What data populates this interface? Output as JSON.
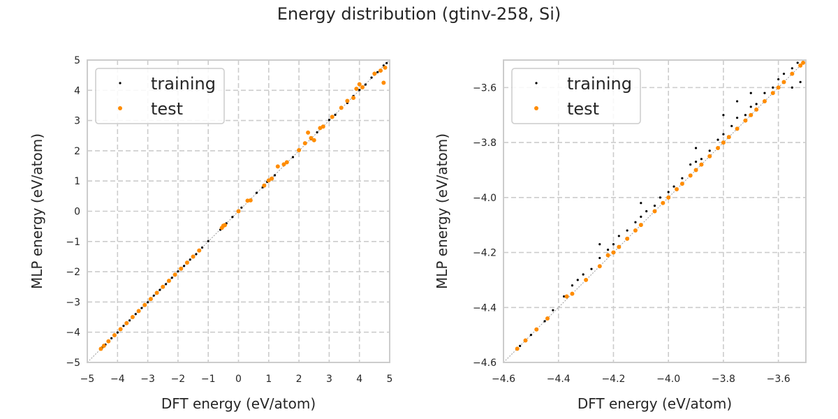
{
  "figure": {
    "title": "Energy distribution (gtinv-258, Si)"
  },
  "colors": {
    "training": "#000000",
    "test": "#ff8c00",
    "grid": "#cccccc",
    "frame": "#cccccc",
    "diagonal": "#9a9a9a"
  },
  "chart_data": [
    {
      "type": "scatter",
      "title": "",
      "xlabel": "DFT energy (eV/atom)",
      "ylabel": "MLP energy (eV/atom)",
      "xlim": [
        -5,
        5
      ],
      "ylim": [
        -5,
        5
      ],
      "xticks": [
        -5,
        -4,
        -3,
        -2,
        -1,
        0,
        1,
        2,
        3,
        4,
        5
      ],
      "yticks": [
        -5,
        -4,
        -3,
        -2,
        -1,
        0,
        1,
        2,
        3,
        4,
        5
      ],
      "xtick_labels": [
        "−5",
        "−4",
        "−3",
        "−2",
        "−1",
        "0",
        "1",
        "2",
        "3",
        "4",
        "5"
      ],
      "ytick_labels": [
        "−5",
        "−4",
        "−3",
        "−2",
        "−1",
        "0",
        "1",
        "2",
        "3",
        "4",
        "5"
      ],
      "grid": true,
      "legend_position": "top-left",
      "diagonal": [
        [
          -5,
          -5
        ],
        [
          5,
          5
        ]
      ],
      "series": [
        {
          "name": "training",
          "points": [
            [
              -4.55,
              -4.55
            ],
            [
              -4.5,
              -4.5
            ],
            [
              -4.4,
              -4.41
            ],
            [
              -4.2,
              -4.2
            ],
            [
              -4.0,
              -4.01
            ],
            [
              -3.8,
              -3.79
            ],
            [
              -3.6,
              -3.61
            ],
            [
              -3.4,
              -3.4
            ],
            [
              -3.2,
              -3.2
            ],
            [
              -3.0,
              -3.01
            ],
            [
              -2.8,
              -2.79
            ],
            [
              -2.6,
              -2.6
            ],
            [
              -2.4,
              -2.41
            ],
            [
              -2.2,
              -2.2
            ],
            [
              -2.0,
              -1.99
            ],
            [
              -1.8,
              -1.81
            ],
            [
              -1.6,
              -1.6
            ],
            [
              -1.4,
              -1.42
            ],
            [
              -1.2,
              -1.2
            ],
            [
              -1.0,
              -0.99
            ],
            [
              -0.6,
              -0.61
            ],
            [
              -0.4,
              -0.4
            ],
            [
              -0.2,
              -0.19
            ],
            [
              0.0,
              0.01
            ],
            [
              0.1,
              0.12
            ],
            [
              0.4,
              0.38
            ],
            [
              0.6,
              0.61
            ],
            [
              0.8,
              0.79
            ],
            [
              0.95,
              0.97
            ],
            [
              1.2,
              1.19
            ],
            [
              1.5,
              1.52
            ],
            [
              1.8,
              1.79
            ],
            [
              2.0,
              2.01
            ],
            [
              2.2,
              2.22
            ],
            [
              2.4,
              2.38
            ],
            [
              2.6,
              2.61
            ],
            [
              2.8,
              2.79
            ],
            [
              3.0,
              3.02
            ],
            [
              3.2,
              3.19
            ],
            [
              3.4,
              3.43
            ],
            [
              3.6,
              3.58
            ],
            [
              3.8,
              3.81
            ],
            [
              4.0,
              4.01
            ],
            [
              4.2,
              4.19
            ],
            [
              4.4,
              4.42
            ],
            [
              4.6,
              4.6
            ],
            [
              4.8,
              4.82
            ],
            [
              4.9,
              4.9
            ]
          ]
        },
        {
          "name": "test",
          "points": [
            [
              -4.55,
              -4.55
            ],
            [
              -4.45,
              -4.45
            ],
            [
              -4.3,
              -4.3
            ],
            [
              -4.1,
              -4.1
            ],
            [
              -3.9,
              -3.9
            ],
            [
              -3.7,
              -3.7
            ],
            [
              -3.5,
              -3.5
            ],
            [
              -3.3,
              -3.3
            ],
            [
              -3.1,
              -3.1
            ],
            [
              -2.9,
              -2.9
            ],
            [
              -2.7,
              -2.7
            ],
            [
              -2.5,
              -2.5
            ],
            [
              -2.3,
              -2.3
            ],
            [
              -2.1,
              -2.1
            ],
            [
              -1.9,
              -1.9
            ],
            [
              -1.7,
              -1.7
            ],
            [
              -1.5,
              -1.5
            ],
            [
              -1.3,
              -1.3
            ],
            [
              -0.55,
              -0.55
            ],
            [
              -0.5,
              -0.48
            ],
            [
              -0.45,
              -0.46
            ],
            [
              0.0,
              0.0
            ],
            [
              0.3,
              0.35
            ],
            [
              0.4,
              0.36
            ],
            [
              0.85,
              0.85
            ],
            [
              1.0,
              1.02
            ],
            [
              1.1,
              1.08
            ],
            [
              1.3,
              1.48
            ],
            [
              1.5,
              1.55
            ],
            [
              1.6,
              1.62
            ],
            [
              2.0,
              2.02
            ],
            [
              2.2,
              2.25
            ],
            [
              2.3,
              2.6
            ],
            [
              2.4,
              2.42
            ],
            [
              2.5,
              2.35
            ],
            [
              2.7,
              2.75
            ],
            [
              2.8,
              2.8
            ],
            [
              3.1,
              3.12
            ],
            [
              3.4,
              3.42
            ],
            [
              3.6,
              3.65
            ],
            [
              3.8,
              3.75
            ],
            [
              3.9,
              4.05
            ],
            [
              4.0,
              4.2
            ],
            [
              4.1,
              4.1
            ],
            [
              4.5,
              4.55
            ],
            [
              4.7,
              4.65
            ],
            [
              4.8,
              4.25
            ],
            [
              4.85,
              4.75
            ]
          ]
        }
      ]
    },
    {
      "type": "scatter",
      "title": "",
      "xlabel": "DFT energy (eV/atom)",
      "ylabel": "MLP energy (eV/atom)",
      "xlim": [
        -4.6,
        -3.5
      ],
      "ylim": [
        -4.6,
        -3.5
      ],
      "xticks": [
        -4.6,
        -4.4,
        -4.2,
        -4.0,
        -3.8,
        -3.6
      ],
      "yticks": [
        -4.6,
        -4.4,
        -4.2,
        -4.0,
        -3.8,
        -3.6
      ],
      "xtick_labels": [
        "−4.6",
        "−4.4",
        "−4.2",
        "−4.0",
        "−3.8",
        "−3.6"
      ],
      "ytick_labels": [
        "−4.6",
        "−4.4",
        "−4.2",
        "−4.0",
        "−3.8",
        "−3.6"
      ],
      "grid": true,
      "legend_position": "top-left",
      "diagonal": [
        [
          -4.6,
          -4.6
        ],
        [
          -3.5,
          -3.5
        ]
      ],
      "series": [
        {
          "name": "training",
          "points": [
            [
              -4.54,
              -4.54
            ],
            [
              -4.5,
              -4.5
            ],
            [
              -4.45,
              -4.45
            ],
            [
              -4.42,
              -4.41
            ],
            [
              -4.38,
              -4.36
            ],
            [
              -4.35,
              -4.32
            ],
            [
              -4.33,
              -4.3
            ],
            [
              -4.31,
              -4.28
            ],
            [
              -4.28,
              -4.26
            ],
            [
              -4.25,
              -4.22
            ],
            [
              -4.22,
              -4.19
            ],
            [
              -4.2,
              -4.17
            ],
            [
              -4.18,
              -4.14
            ],
            [
              -4.15,
              -4.12
            ],
            [
              -4.12,
              -4.09
            ],
            [
              -4.1,
              -4.07
            ],
            [
              -4.08,
              -4.05
            ],
            [
              -4.05,
              -4.03
            ],
            [
              -4.03,
              -4.0
            ],
            [
              -4.0,
              -3.98
            ],
            [
              -3.98,
              -3.96
            ],
            [
              -3.95,
              -3.93
            ],
            [
              -3.92,
              -3.88
            ],
            [
              -3.9,
              -3.87
            ],
            [
              -3.88,
              -3.86
            ],
            [
              -3.85,
              -3.83
            ],
            [
              -3.82,
              -3.79
            ],
            [
              -3.8,
              -3.77
            ],
            [
              -3.77,
              -3.74
            ],
            [
              -3.75,
              -3.71
            ],
            [
              -3.72,
              -3.7
            ],
            [
              -3.7,
              -3.67
            ],
            [
              -3.68,
              -3.66
            ],
            [
              -3.65,
              -3.62
            ],
            [
              -3.62,
              -3.6
            ],
            [
              -3.6,
              -3.57
            ],
            [
              -3.58,
              -3.55
            ],
            [
              -3.55,
              -3.53
            ],
            [
              -3.53,
              -3.51
            ],
            [
              -3.51,
              -3.5
            ],
            [
              -3.8,
              -3.7
            ],
            [
              -3.75,
              -3.65
            ],
            [
              -3.52,
              -3.58
            ],
            [
              -3.55,
              -3.6
            ],
            [
              -4.25,
              -4.17
            ],
            [
              -4.1,
              -4.02
            ],
            [
              -3.9,
              -3.82
            ],
            [
              -3.7,
              -3.62
            ]
          ]
        },
        {
          "name": "test",
          "points": [
            [
              -4.55,
              -4.55
            ],
            [
              -4.52,
              -4.52
            ],
            [
              -4.48,
              -4.48
            ],
            [
              -4.44,
              -4.44
            ],
            [
              -4.37,
              -4.36
            ],
            [
              -4.35,
              -4.35
            ],
            [
              -4.3,
              -4.3
            ],
            [
              -4.25,
              -4.25
            ],
            [
              -4.22,
              -4.21
            ],
            [
              -4.2,
              -4.2
            ],
            [
              -4.18,
              -4.18
            ],
            [
              -4.15,
              -4.15
            ],
            [
              -4.12,
              -4.12
            ],
            [
              -4.1,
              -4.1
            ],
            [
              -4.05,
              -4.05
            ],
            [
              -4.02,
              -4.02
            ],
            [
              -4.0,
              -4.0
            ],
            [
              -3.97,
              -3.97
            ],
            [
              -3.95,
              -3.95
            ],
            [
              -3.92,
              -3.92
            ],
            [
              -3.9,
              -3.9
            ],
            [
              -3.88,
              -3.88
            ],
            [
              -3.85,
              -3.85
            ],
            [
              -3.82,
              -3.82
            ],
            [
              -3.8,
              -3.8
            ],
            [
              -3.78,
              -3.78
            ],
            [
              -3.75,
              -3.75
            ],
            [
              -3.72,
              -3.72
            ],
            [
              -3.7,
              -3.7
            ],
            [
              -3.68,
              -3.68
            ],
            [
              -3.65,
              -3.65
            ],
            [
              -3.62,
              -3.62
            ],
            [
              -3.6,
              -3.6
            ],
            [
              -3.58,
              -3.58
            ],
            [
              -3.55,
              -3.55
            ],
            [
              -3.52,
              -3.52
            ],
            [
              -3.51,
              -3.51
            ]
          ]
        }
      ]
    }
  ]
}
